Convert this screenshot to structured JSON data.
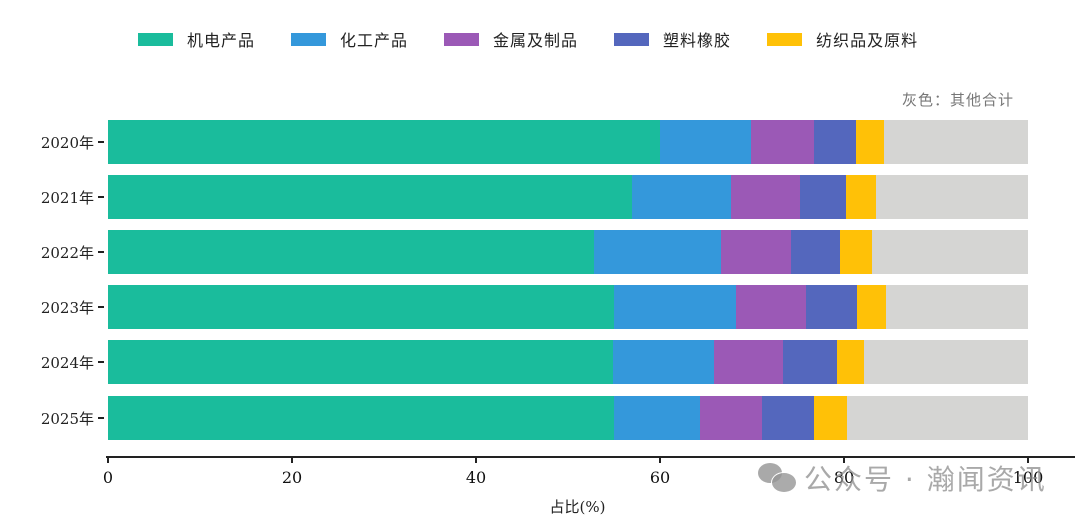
{
  "chart_data": {
    "type": "bar",
    "orientation": "horizontal",
    "stacked": true,
    "title": "",
    "xlabel": "占比(%)",
    "ylabel": "",
    "xlim": [
      0,
      100
    ],
    "xticks": [
      0,
      20,
      40,
      60,
      80,
      100
    ],
    "grid": false,
    "legend_position": "top",
    "categories": [
      "2020年",
      "2021年",
      "2022年",
      "2023年",
      "2024年",
      "2025年"
    ],
    "series": [
      {
        "name": "机电产品",
        "color": "#1abc9c",
        "values": [
          60.0,
          57.0,
          52.8,
          55.0,
          54.9,
          55.0
        ]
      },
      {
        "name": "化工产品",
        "color": "#3498db",
        "values": [
          9.9,
          10.7,
          13.8,
          13.3,
          11.0,
          9.4
        ]
      },
      {
        "name": "金属及制品",
        "color": "#9b59b6",
        "values": [
          6.8,
          7.5,
          7.6,
          7.6,
          7.5,
          6.7
        ]
      },
      {
        "name": "塑料橡胶",
        "color": "#5467bd",
        "values": [
          4.6,
          5.0,
          5.4,
          5.5,
          5.8,
          5.6
        ]
      },
      {
        "name": "纺织品及原料",
        "color": "#ffc107",
        "values": [
          3.0,
          3.3,
          3.5,
          3.2,
          3.0,
          3.6
        ]
      },
      {
        "name": "其他合计",
        "color": "#d5d5d3",
        "values": [
          15.7,
          16.5,
          16.9,
          15.4,
          17.8,
          19.7
        ]
      }
    ],
    "annotations": [
      "灰色：其他合计"
    ]
  },
  "legend": [
    {
      "label": "机电产品",
      "color": "#1abc9c"
    },
    {
      "label": "化工产品",
      "color": "#3498db"
    },
    {
      "label": "金属及制品",
      "color": "#9b59b6"
    },
    {
      "label": "塑料橡胶",
      "color": "#5467bd"
    },
    {
      "label": "纺织品及原料",
      "color": "#ffc107"
    }
  ],
  "note": "灰色：其他合计",
  "axis": {
    "xtitle": "占比(%)",
    "xticks": [
      "0",
      "20",
      "40",
      "60",
      "80",
      "100"
    ],
    "ylabels": [
      "2020年",
      "2021年",
      "2022年",
      "2023年",
      "2024年",
      "2025年"
    ]
  },
  "watermark": "公众号 · 瀚闻资讯"
}
